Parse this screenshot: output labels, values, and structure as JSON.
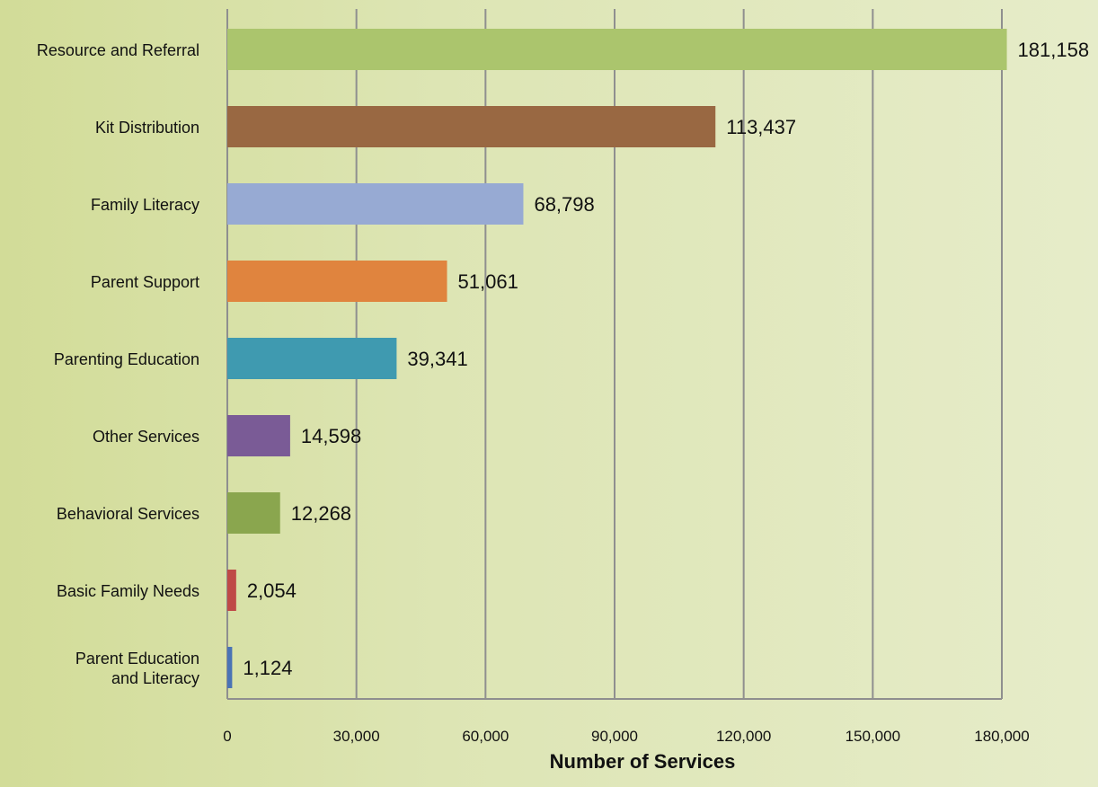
{
  "chart_data": {
    "type": "bar",
    "orientation": "horizontal",
    "title": "",
    "xlabel": "Number of Services",
    "ylabel": "",
    "xlim": [
      0,
      180000
    ],
    "x_ticks": [
      0,
      30000,
      60000,
      90000,
      120000,
      150000,
      180000
    ],
    "x_tick_labels": [
      "0",
      "30,000",
      "60,000",
      "90,000",
      "120,000",
      "150,000",
      "180,000"
    ],
    "grid": "vertical",
    "legend": "none",
    "categories": [
      [
        "Resource and Referral"
      ],
      [
        "Kit Distribution"
      ],
      [
        "Family Literacy"
      ],
      [
        "Parent Support"
      ],
      [
        "Parenting Education"
      ],
      [
        "Other Services"
      ],
      [
        "Behavioral Services"
      ],
      [
        "Basic Family Needs"
      ],
      [
        "Parent Education",
        "and Literacy"
      ]
    ],
    "values": [
      181158,
      113437,
      68798,
      51061,
      39341,
      14598,
      12268,
      2054,
      1124
    ],
    "value_labels": [
      "181,158",
      "113,437",
      "68,798",
      "51,061",
      "39,341",
      "14,598",
      "12,268",
      "2,054",
      "1,124"
    ],
    "colors": [
      "#abc56d",
      "#996842",
      "#97aad3",
      "#e0843e",
      "#3f9ab0",
      "#7a5b96",
      "#8aa64e",
      "#bf4a47",
      "#4a73b5"
    ]
  }
}
